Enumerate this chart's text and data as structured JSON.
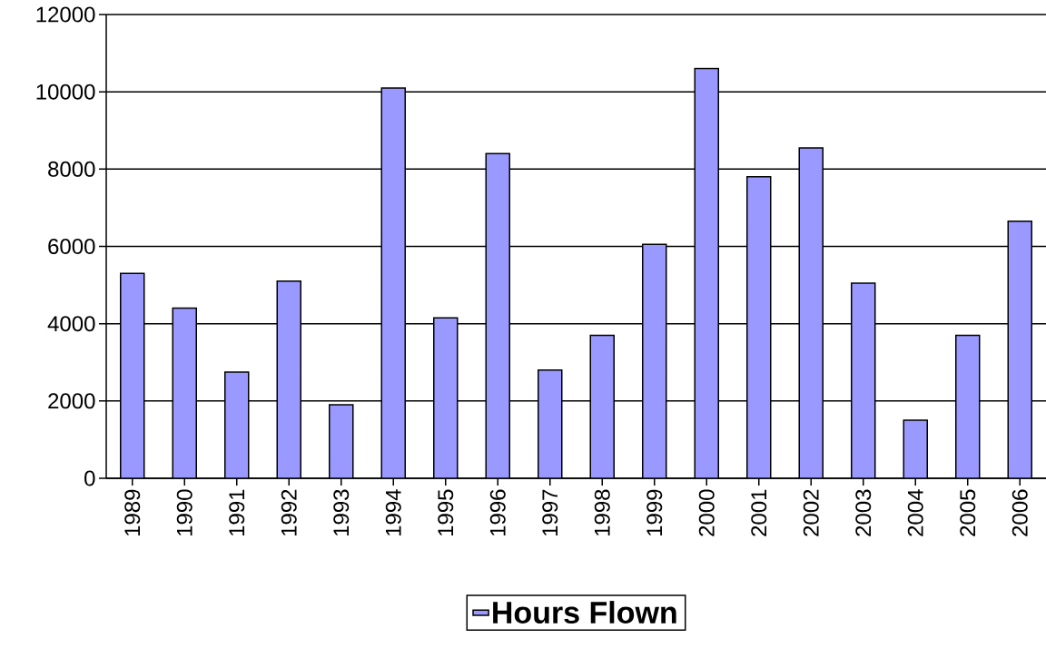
{
  "chart_data": {
    "type": "bar",
    "categories": [
      "1989",
      "1990",
      "1991",
      "1992",
      "1993",
      "1994",
      "1995",
      "1996",
      "1997",
      "1998",
      "1999",
      "2000",
      "2001",
      "2002",
      "2003",
      "2004",
      "2005",
      "2006"
    ],
    "series": [
      {
        "name": "Hours Flown",
        "color": "#9999ff",
        "values": [
          5300,
          4400,
          2750,
          5100,
          1900,
          10100,
          4150,
          8400,
          2800,
          3700,
          6050,
          10600,
          7800,
          8550,
          5050,
          1500,
          3700,
          6650
        ]
      }
    ],
    "ylim": [
      0,
      12000
    ],
    "yticks": [
      0,
      2000,
      4000,
      6000,
      8000,
      10000,
      12000
    ],
    "grid": "y",
    "legend": "bottom"
  }
}
